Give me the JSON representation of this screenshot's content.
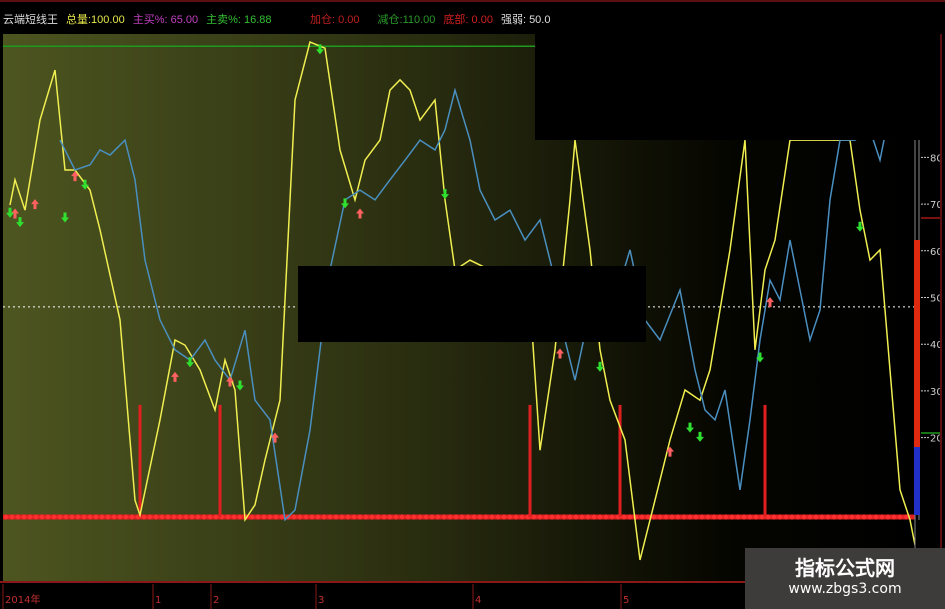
{
  "header": {
    "indicator_name": "云端短线王",
    "items": [
      {
        "label": "总量:100.00",
        "color": "#e6e64a"
      },
      {
        "label": "主买%: 65.00",
        "color": "#c040c0"
      },
      {
        "label": "主卖%: 16.88",
        "color": "#33c033"
      },
      {
        "label": "加仓: 0.00",
        "color": "#c02020"
      },
      {
        "label": "减仓:110.00",
        "color": "#2a9a2a"
      },
      {
        "label": "底部: 0.00",
        "color": "#d02020"
      },
      {
        "label": "强弱: 50.0",
        "color": "#dddddd"
      }
    ]
  },
  "right_axis": {
    "ticks": [
      "80",
      "70",
      "60",
      "50",
      "40",
      "30",
      "20"
    ],
    "strength_level": 50.0
  },
  "time_axis": {
    "labels": [
      "2014年",
      "1",
      "2",
      "3",
      "4",
      "5"
    ]
  },
  "watermark": {
    "title": "指标公式网",
    "url": "www.zbgs3.com"
  },
  "colors": {
    "yellow_line": "#f0ee50",
    "blue_line": "#4a8fc0",
    "bars": "#e02020",
    "baseline": "#e02020",
    "top_line": "#1e9a1e"
  },
  "chart_data": {
    "type": "line",
    "ylim": [
      -10,
      110
    ],
    "x_unit": "bar index",
    "series": [
      {
        "color": "#f0ee50",
        "points": [
          [
            2,
            69.8
          ],
          [
            3,
            75.2
          ],
          [
            5,
            68.7
          ],
          [
            8,
            88
          ],
          [
            11,
            98.7
          ],
          [
            13,
            77.3
          ],
          [
            15,
            77.3
          ],
          [
            18,
            73
          ],
          [
            20,
            64.5
          ],
          [
            24,
            45.2
          ],
          [
            27,
            6.6
          ],
          [
            28,
            3.4
          ],
          [
            32,
            23.8
          ],
          [
            35,
            40.9
          ],
          [
            37,
            39.8
          ],
          [
            40,
            34.5
          ],
          [
            43,
            25.9
          ],
          [
            45,
            36.6
          ],
          [
            47,
            30.2
          ],
          [
            49,
            2.4
          ],
          [
            51,
            5.6
          ],
          [
            53,
            15.2
          ],
          [
            56,
            28
          ],
          [
            59,
            92.3
          ],
          [
            62,
            104.7
          ],
          [
            65,
            103.4
          ],
          [
            68,
            81.6
          ],
          [
            71,
            70.9
          ],
          [
            73,
            79.4
          ],
          [
            76,
            83.7
          ],
          [
            78,
            94.4
          ],
          [
            80,
            96.6
          ],
          [
            82,
            94.4
          ],
          [
            84,
            88
          ],
          [
            87,
            92.3
          ],
          [
            89,
            70.9
          ],
          [
            91,
            55.9
          ],
          [
            94,
            58
          ],
          [
            98,
            55.9
          ],
          [
            104,
            43
          ],
          [
            106,
            49.5
          ],
          [
            108,
            17.3
          ],
          [
            111,
            38.8
          ],
          [
            114,
            70.9
          ],
          [
            115,
            83.7
          ],
          [
            118,
            60.2
          ],
          [
            120,
            38.8
          ],
          [
            122,
            28
          ],
          [
            125,
            19.5
          ],
          [
            128,
            -6.2
          ],
          [
            131,
            6.6
          ],
          [
            134,
            19.5
          ],
          [
            137,
            30.2
          ],
          [
            140,
            28
          ],
          [
            142,
            34.5
          ],
          [
            146,
            60.2
          ],
          [
            149,
            83.7
          ],
          [
            151,
            38.8
          ],
          [
            153,
            55.9
          ],
          [
            155,
            62.3
          ],
          [
            158,
            83.7
          ],
          [
            170,
            83.7
          ],
          [
            172,
            68.7
          ],
          [
            174,
            58
          ],
          [
            176,
            60.2
          ],
          [
            178,
            34.5
          ],
          [
            180,
            8.8
          ],
          [
            182,
            2.4
          ],
          [
            183,
            -3
          ]
        ]
      },
      {
        "color": "#4a8fc0",
        "points": [
          [
            12,
            83.7
          ],
          [
            15,
            77.3
          ],
          [
            18,
            78.4
          ],
          [
            20,
            81.6
          ],
          [
            22,
            80.5
          ],
          [
            25,
            83.7
          ],
          [
            27,
            75.2
          ],
          [
            29,
            58
          ],
          [
            32,
            45.2
          ],
          [
            35,
            38.8
          ],
          [
            38,
            36.6
          ],
          [
            41,
            40.9
          ],
          [
            43,
            36.6
          ],
          [
            46,
            32.3
          ],
          [
            49,
            43
          ],
          [
            51,
            28
          ],
          [
            54,
            23.8
          ],
          [
            57,
            2.4
          ],
          [
            59,
            4.5
          ],
          [
            62,
            21.6
          ],
          [
            64,
            38.8
          ],
          [
            66,
            55.9
          ],
          [
            69,
            70.9
          ],
          [
            72,
            73
          ],
          [
            75,
            70.9
          ],
          [
            78,
            75.2
          ],
          [
            81,
            79.4
          ],
          [
            84,
            83.7
          ],
          [
            87,
            81.6
          ],
          [
            89,
            85.9
          ],
          [
            91,
            94.4
          ],
          [
            94,
            83.7
          ],
          [
            96,
            73
          ],
          [
            99,
            66.6
          ],
          [
            102,
            68.7
          ],
          [
            105,
            62.3
          ],
          [
            108,
            66.6
          ],
          [
            111,
            53.7
          ],
          [
            113,
            40.9
          ],
          [
            115,
            32.3
          ],
          [
            118,
            47.3
          ],
          [
            120,
            55.9
          ],
          [
            123,
            49.5
          ],
          [
            126,
            60.2
          ],
          [
            129,
            45.2
          ],
          [
            132,
            40.9
          ],
          [
            136,
            51.6
          ],
          [
            139,
            34.5
          ],
          [
            141,
            25.9
          ],
          [
            143,
            23.8
          ],
          [
            145,
            30.2
          ],
          [
            148,
            8.8
          ],
          [
            150,
            23.8
          ],
          [
            152,
            40.9
          ],
          [
            154,
            53.7
          ],
          [
            156,
            49.5
          ],
          [
            158,
            62.3
          ],
          [
            160,
            51.6
          ],
          [
            162,
            40.9
          ],
          [
            164,
            47.3
          ],
          [
            166,
            70.9
          ],
          [
            168,
            83.7
          ],
          [
            171,
            83.7
          ],
          [
            174,
            85.9
          ],
          [
            176,
            79.4
          ],
          [
            178,
            90.2
          ]
        ]
      }
    ],
    "bars": [
      {
        "x": 28,
        "from": 3,
        "to": 27
      },
      {
        "x": 44,
        "from": 3,
        "to": 27
      },
      {
        "x": 106,
        "from": 3,
        "to": 27
      },
      {
        "x": 124,
        "from": 3,
        "to": 27
      },
      {
        "x": 153,
        "from": 3,
        "to": 27
      }
    ],
    "reference_lines": [
      {
        "value": 48,
        "style": "dotted",
        "color": "#ffffff"
      },
      {
        "value": 103.8,
        "color": "#1e9a1e"
      },
      {
        "value": 3,
        "color": "#e02020"
      }
    ],
    "buy_markers": [
      [
        3,
        68
      ],
      [
        7,
        70
      ],
      [
        15,
        76
      ],
      [
        35,
        33
      ],
      [
        46,
        32
      ],
      [
        55,
        20
      ],
      [
        72,
        68
      ],
      [
        112,
        38
      ],
      [
        134,
        17
      ],
      [
        154,
        49
      ]
    ],
    "sell_markers": [
      [
        2,
        69
      ],
      [
        4,
        67
      ],
      [
        13,
        68
      ],
      [
        17,
        75
      ],
      [
        38,
        37
      ],
      [
        48,
        32
      ],
      [
        64,
        104
      ],
      [
        69,
        71
      ],
      [
        89,
        73
      ],
      [
        120,
        36
      ],
      [
        138,
        23
      ],
      [
        140,
        21
      ],
      [
        152,
        38
      ],
      [
        172,
        66
      ]
    ]
  }
}
